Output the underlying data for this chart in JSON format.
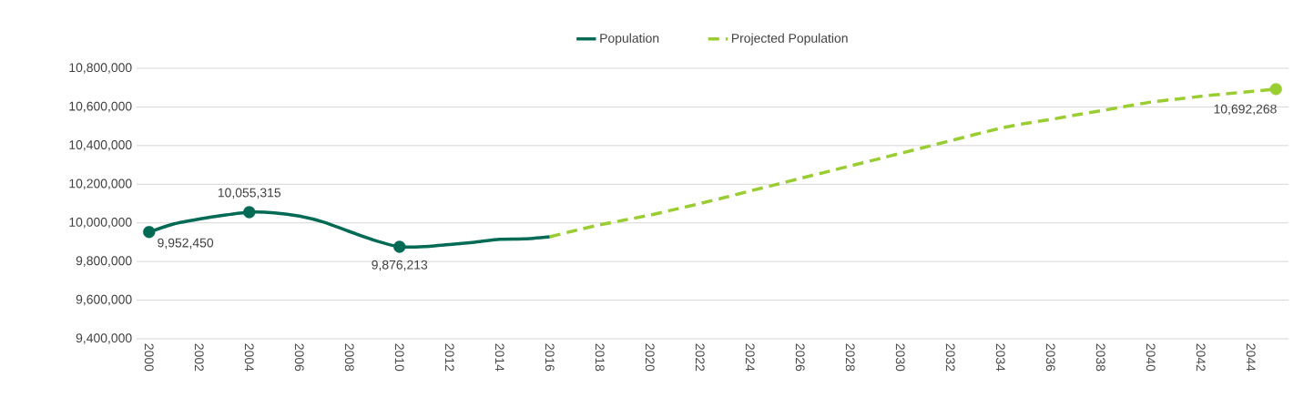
{
  "chart_data": {
    "type": "line",
    "categories": [
      "2000",
      null,
      "2002",
      null,
      "2004",
      null,
      "2006",
      null,
      "2008",
      null,
      "2010",
      null,
      "2012",
      null,
      "2014",
      null,
      "2016",
      null,
      "2018",
      null,
      "2020",
      null,
      "2022",
      null,
      "2024",
      null,
      "2026",
      null,
      "2028",
      null,
      "2030",
      null,
      "2032",
      null,
      "2034",
      null,
      "2036",
      null,
      "2038",
      null,
      "2040",
      null,
      "2042",
      null,
      "2044",
      null
    ],
    "series": [
      {
        "name": "Population",
        "color": "#006a55",
        "line_style": "solid",
        "values": [
          9952450,
          9995000,
          10020000,
          10040000,
          10055315,
          10052000,
          10035000,
          10003000,
          9955000,
          9910000,
          9876213,
          9877000,
          9888000,
          9900000,
          9915000,
          9917000,
          9928000,
          null,
          null,
          null,
          null,
          null,
          null,
          null,
          null,
          null,
          null,
          null,
          null,
          null,
          null,
          null,
          null,
          null,
          null,
          null,
          null,
          null,
          null,
          null,
          null,
          null,
          null,
          null,
          null,
          null
        ],
        "value_labels": [
          "9,952,450",
          null,
          null,
          null,
          "10,055,315",
          null,
          null,
          null,
          null,
          null,
          "9,876,213",
          null,
          null,
          null,
          null,
          null,
          null,
          null,
          null,
          null,
          null,
          null,
          null,
          null,
          null,
          null,
          null,
          null,
          null,
          null,
          null,
          null,
          null,
          null,
          null,
          null,
          null,
          null,
          null,
          null,
          null,
          null,
          null,
          null,
          null,
          null
        ]
      },
      {
        "name": "Projected Population",
        "color": "#9acd32",
        "line_style": "dashed",
        "values": [
          null,
          null,
          null,
          null,
          null,
          null,
          null,
          null,
          null,
          null,
          null,
          null,
          null,
          null,
          null,
          null,
          9928000,
          9960000,
          9990000,
          10015000,
          10040000,
          10070000,
          10100000,
          10132000,
          10165000,
          10197000,
          10230000,
          10262000,
          10295000,
          10327000,
          10360000,
          10392000,
          10425000,
          10458000,
          10490000,
          10515000,
          10535000,
          10558000,
          10580000,
          10603000,
          10625000,
          10640000,
          10655000,
          10668000,
          10680000,
          10692268
        ],
        "value_labels": [
          null,
          null,
          null,
          null,
          null,
          null,
          null,
          null,
          null,
          null,
          null,
          null,
          null,
          null,
          null,
          null,
          null,
          null,
          null,
          null,
          null,
          null,
          null,
          null,
          null,
          null,
          null,
          null,
          null,
          null,
          null,
          null,
          null,
          null,
          null,
          null,
          null,
          null,
          null,
          null,
          null,
          null,
          null,
          null,
          null,
          "10,692,268"
        ]
      }
    ],
    "ylim": [
      9400000,
      10800000
    ],
    "yticks": [
      {
        "value": 9400000,
        "label": "9,400,000"
      },
      {
        "value": 9600000,
        "label": "9,600,000"
      },
      {
        "value": 9800000,
        "label": "9,800,000"
      },
      {
        "value": 10000000,
        "label": "10,000,000"
      },
      {
        "value": 10200000,
        "label": "10,200,000"
      },
      {
        "value": 10400000,
        "label": "10,400,000"
      },
      {
        "value": 10600000,
        "label": "10,600,000"
      },
      {
        "value": 10800000,
        "label": "10,800,000"
      }
    ],
    "grid": "y",
    "legend": "top"
  }
}
